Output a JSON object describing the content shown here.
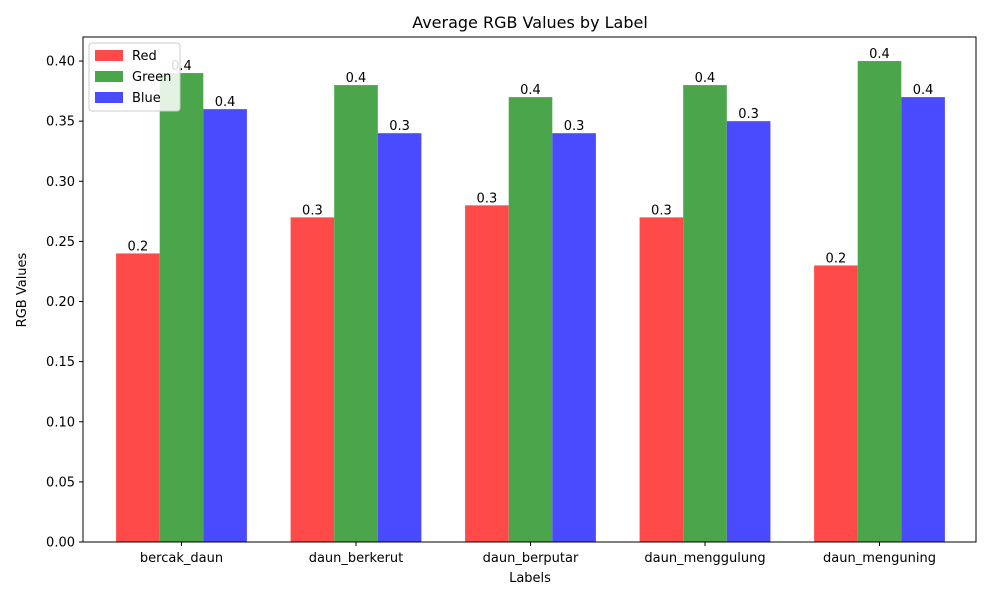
{
  "chart_data": {
    "type": "bar",
    "title": "Average RGB Values by Label",
    "xlabel": "Labels",
    "ylabel": "RGB Values",
    "categories": [
      "bercak_daun",
      "daun_berkerut",
      "daun_berputar",
      "daun_menggulung",
      "daun_menguning"
    ],
    "series": [
      {
        "name": "Red",
        "color": "#ff4a4a",
        "values": [
          0.24,
          0.27,
          0.28,
          0.27,
          0.23
        ],
        "labels": [
          "0.2",
          "0.3",
          "0.3",
          "0.3",
          "0.2"
        ]
      },
      {
        "name": "Green",
        "color": "#4ba64b",
        "values": [
          0.39,
          0.38,
          0.37,
          0.38,
          0.4
        ],
        "labels": [
          "0.4",
          "0.4",
          "0.4",
          "0.4",
          "0.4"
        ]
      },
      {
        "name": "Blue",
        "color": "#4a4aff",
        "values": [
          0.36,
          0.34,
          0.34,
          0.35,
          0.37
        ],
        "labels": [
          "0.4",
          "0.3",
          "0.3",
          "0.3",
          "0.4"
        ]
      }
    ],
    "ylim": [
      0,
      0.42
    ],
    "yticks": [
      "0.00",
      "0.05",
      "0.10",
      "0.15",
      "0.20",
      "0.25",
      "0.30",
      "0.35",
      "0.40"
    ],
    "grid": false,
    "legend_position": "top-left"
  }
}
